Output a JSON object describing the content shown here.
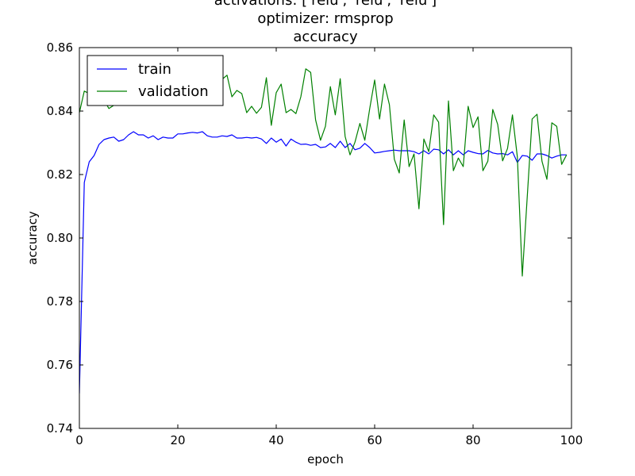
{
  "chart_data": {
    "type": "line",
    "title_lines": [
      "activations: ['relu', 'relu', 'relu']",
      "optimizer: rmsprop",
      "accuracy"
    ],
    "xlabel": "epoch",
    "ylabel": "accuracy",
    "xlim": [
      0,
      100
    ],
    "ylim": [
      0.74,
      0.86
    ],
    "xticks": [
      0,
      20,
      40,
      60,
      80,
      100
    ],
    "yticks": [
      0.74,
      0.76,
      0.78,
      0.8,
      0.82,
      0.84,
      0.86
    ],
    "xtick_labels": [
      "0",
      "20",
      "40",
      "60",
      "80",
      "100"
    ],
    "ytick_labels": [
      "0.74",
      "0.76",
      "0.78",
      "0.80",
      "0.82",
      "0.84",
      "0.86"
    ],
    "grid": false,
    "legend_position": "top-left",
    "series": [
      {
        "name": "train",
        "color": "#0000ff",
        "values": [
          0.751,
          0.8175,
          0.824,
          0.826,
          0.8295,
          0.831,
          0.8315,
          0.8318,
          0.8305,
          0.831,
          0.8325,
          0.8335,
          0.8325,
          0.8325,
          0.8315,
          0.8322,
          0.831,
          0.8318,
          0.8315,
          0.8315,
          0.8328,
          0.8328,
          0.8331,
          0.8333,
          0.8331,
          0.8335,
          0.8322,
          0.8318,
          0.8318,
          0.8322,
          0.832,
          0.8325,
          0.8315,
          0.8315,
          0.8317,
          0.8315,
          0.8317,
          0.8312,
          0.8298,
          0.8315,
          0.8302,
          0.8312,
          0.829,
          0.8312,
          0.8302,
          0.8295,
          0.8296,
          0.8292,
          0.8295,
          0.8285,
          0.8287,
          0.8298,
          0.8285,
          0.8305,
          0.8285,
          0.8298,
          0.8278,
          0.8283,
          0.8298,
          0.8285,
          0.8268,
          0.827,
          0.8273,
          0.8275,
          0.8277,
          0.8275,
          0.8275,
          0.8275,
          0.8272,
          0.8265,
          0.8275,
          0.8265,
          0.828,
          0.8278,
          0.8265,
          0.8278,
          0.8262,
          0.8275,
          0.8262,
          0.8275,
          0.827,
          0.8266,
          0.8265,
          0.8276,
          0.8268,
          0.8265,
          0.8266,
          0.8262,
          0.8272,
          0.8238,
          0.826,
          0.8258,
          0.8245,
          0.8265,
          0.8265,
          0.826,
          0.8252,
          0.8258,
          0.8262,
          0.8262
        ]
      },
      {
        "name": "validation",
        "color": "#008000",
        "values": [
          0.8395,
          0.8463,
          0.8455,
          0.8422,
          0.843,
          0.8435,
          0.8408,
          0.8418,
          0.8428,
          0.8418,
          0.846,
          0.8425,
          0.844,
          0.8455,
          0.847,
          0.8445,
          0.8465,
          0.8435,
          0.8458,
          0.8462,
          0.845,
          0.8465,
          0.8447,
          0.8465,
          0.8443,
          0.8445,
          0.8462,
          0.8465,
          0.8478,
          0.85,
          0.8513,
          0.8445,
          0.8465,
          0.8455,
          0.8395,
          0.8415,
          0.8393,
          0.8412,
          0.8505,
          0.8355,
          0.8458,
          0.8485,
          0.8395,
          0.8405,
          0.8392,
          0.8445,
          0.8533,
          0.8522,
          0.8372,
          0.8308,
          0.8352,
          0.8477,
          0.8388,
          0.8502,
          0.832,
          0.8262,
          0.8302,
          0.8361,
          0.8308,
          0.8408,
          0.8498,
          0.8375,
          0.8485,
          0.842,
          0.8248,
          0.8205,
          0.8372,
          0.8225,
          0.8265,
          0.8092,
          0.8312,
          0.8272,
          0.8388,
          0.8365,
          0.8042,
          0.8432,
          0.8212,
          0.8252,
          0.8225,
          0.8415,
          0.8348,
          0.8382,
          0.8212,
          0.8242,
          0.8405,
          0.8358,
          0.8243,
          0.8282,
          0.8388,
          0.8255,
          0.788,
          0.8128,
          0.8375,
          0.839,
          0.8242,
          0.8185,
          0.8363,
          0.8352,
          0.8232,
          0.8262
        ]
      }
    ]
  }
}
